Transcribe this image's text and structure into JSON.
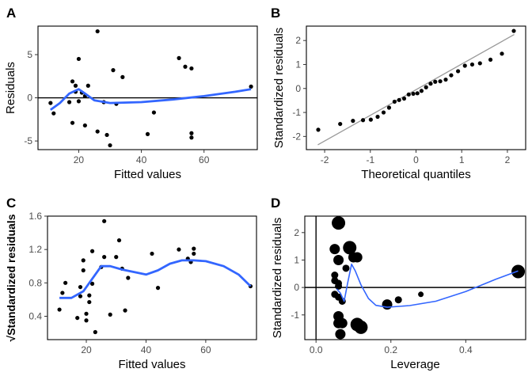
{
  "chart_data": [
    {
      "panel": "A",
      "type": "scatter",
      "xlabel": "Fitted values",
      "ylabel": "Residuals",
      "xlim": [
        7,
        77
      ],
      "ylim": [
        -6,
        8.3
      ],
      "xticks": [
        20,
        40,
        60
      ],
      "yticks": [
        -5,
        0,
        5
      ],
      "hline": 0,
      "points": [
        [
          11,
          -0.6
        ],
        [
          12,
          -1.8
        ],
        [
          17,
          -0.5
        ],
        [
          18,
          1.9
        ],
        [
          18,
          -2.9
        ],
        [
          19,
          0.7
        ],
        [
          19,
          1.4
        ],
        [
          20,
          4.5
        ],
        [
          20,
          -0.4
        ],
        [
          21,
          0.6
        ],
        [
          22,
          0.2
        ],
        [
          22,
          -3.2
        ],
        [
          23,
          1.4
        ],
        [
          26,
          7.7
        ],
        [
          26,
          -3.9
        ],
        [
          28,
          -0.5
        ],
        [
          29,
          -4.3
        ],
        [
          30,
          -5.5
        ],
        [
          31,
          3.2
        ],
        [
          32,
          -0.7
        ],
        [
          34,
          2.4
        ],
        [
          42,
          -4.2
        ],
        [
          44,
          -1.7
        ],
        [
          52,
          4.6
        ],
        [
          54,
          3.6
        ],
        [
          56,
          3.4
        ],
        [
          56,
          -4.1
        ],
        [
          56,
          -4.6
        ],
        [
          75,
          1.3
        ]
      ],
      "smooth": [
        [
          11,
          -1.4
        ],
        [
          14,
          -0.6
        ],
        [
          17,
          0.5
        ],
        [
          20,
          1.0
        ],
        [
          22,
          0.5
        ],
        [
          25,
          -0.3
        ],
        [
          30,
          -0.6
        ],
        [
          40,
          -0.5
        ],
        [
          50,
          -0.2
        ],
        [
          60,
          0.2
        ],
        [
          70,
          0.7
        ],
        [
          75,
          1.0
        ]
      ],
      "smooth_color": "#3366ff"
    },
    {
      "panel": "B",
      "type": "scatter",
      "xlabel": "Theoretical quantiles",
      "ylabel": "Standardized residuals",
      "xlim": [
        -2.4,
        2.4
      ],
      "ylim": [
        -2.55,
        2.6
      ],
      "xticks": [
        -2,
        -1,
        0,
        1,
        2
      ],
      "yticks": [
        -2,
        -1,
        0,
        1,
        2
      ],
      "line": [
        [
          -2.15,
          -2.35
        ],
        [
          2.15,
          2.25
        ]
      ],
      "line_color": "#999999",
      "points": [
        [
          -2.14,
          -1.72
        ],
        [
          -1.66,
          -1.48
        ],
        [
          -1.38,
          -1.35
        ],
        [
          -1.16,
          -1.32
        ],
        [
          -0.99,
          -1.3
        ],
        [
          -0.84,
          -1.18
        ],
        [
          -0.71,
          -1.0
        ],
        [
          -0.59,
          -0.8
        ],
        [
          -0.47,
          -0.55
        ],
        [
          -0.37,
          -0.48
        ],
        [
          -0.26,
          -0.42
        ],
        [
          -0.16,
          -0.25
        ],
        [
          -0.06,
          -0.22
        ],
        [
          0.03,
          -0.2
        ],
        [
          0.12,
          -0.1
        ],
        [
          0.22,
          0.05
        ],
        [
          0.32,
          0.2
        ],
        [
          0.42,
          0.28
        ],
        [
          0.53,
          0.3
        ],
        [
          0.65,
          0.37
        ],
        [
          0.77,
          0.55
        ],
        [
          0.92,
          0.72
        ],
        [
          1.07,
          0.95
        ],
        [
          1.23,
          1.0
        ],
        [
          1.4,
          1.05
        ],
        [
          1.63,
          1.2
        ],
        [
          1.88,
          1.45
        ],
        [
          2.14,
          2.4
        ]
      ]
    },
    {
      "panel": "C",
      "type": "scatter",
      "xlabel": "Fitted values",
      "ylabel": "√Standardized residuals",
      "xlim": [
        7,
        77
      ],
      "ylim": [
        0.12,
        1.6
      ],
      "xticks": [
        20,
        40,
        60
      ],
      "yticks": [
        0.4,
        0.8,
        1.2,
        1.6
      ],
      "points": [
        [
          11,
          0.48
        ],
        [
          12,
          0.68
        ],
        [
          13,
          0.8
        ],
        [
          17,
          0.38
        ],
        [
          18,
          0.64
        ],
        [
          18,
          0.75
        ],
        [
          19,
          0.95
        ],
        [
          19,
          1.07
        ],
        [
          20,
          0.35
        ],
        [
          20,
          0.43
        ],
        [
          21,
          0.57
        ],
        [
          21,
          0.65
        ],
        [
          22,
          0.79
        ],
        [
          22,
          1.18
        ],
        [
          23,
          0.21
        ],
        [
          25,
          0.99
        ],
        [
          26,
          1.54
        ],
        [
          26,
          1.11
        ],
        [
          28,
          0.42
        ],
        [
          30,
          1.11
        ],
        [
          31,
          1.31
        ],
        [
          32,
          0.97
        ],
        [
          33,
          0.47
        ],
        [
          34,
          0.86
        ],
        [
          42,
          1.15
        ],
        [
          44,
          0.74
        ],
        [
          51,
          1.2
        ],
        [
          54,
          1.09
        ],
        [
          55,
          1.05
        ],
        [
          56,
          1.21
        ],
        [
          56,
          1.15
        ],
        [
          75,
          0.76
        ]
      ],
      "smooth": [
        [
          11,
          0.62
        ],
        [
          15,
          0.62
        ],
        [
          19,
          0.7
        ],
        [
          22,
          0.85
        ],
        [
          25,
          1.0
        ],
        [
          28,
          1.0
        ],
        [
          32,
          0.96
        ],
        [
          36,
          0.93
        ],
        [
          40,
          0.9
        ],
        [
          44,
          0.95
        ],
        [
          48,
          1.03
        ],
        [
          52,
          1.07
        ],
        [
          56,
          1.07
        ],
        [
          60,
          1.06
        ],
        [
          66,
          1.0
        ],
        [
          71,
          0.9
        ],
        [
          75,
          0.76
        ]
      ],
      "smooth_color": "#3366ff"
    },
    {
      "panel": "D",
      "type": "scatter",
      "xlabel": "Leverage",
      "ylabel": "Standardized residuals",
      "xlim": [
        -0.03,
        0.56
      ],
      "ylim": [
        -1.9,
        2.6
      ],
      "xticks": [
        0.0,
        0.2,
        0.4
      ],
      "yticks": [
        -1,
        0,
        1,
        2
      ],
      "hline": 0,
      "vline": 0,
      "points": [
        [
          0.05,
          1.4
        ],
        [
          0.05,
          0.45
        ],
        [
          0.05,
          0.25
        ],
        [
          0.05,
          -0.25
        ],
        [
          0.06,
          0.15
        ],
        [
          0.06,
          0.05
        ],
        [
          0.06,
          -0.35
        ],
        [
          0.06,
          -1.05
        ],
        [
          0.06,
          -1.3
        ],
        [
          0.07,
          -0.5
        ],
        [
          0.07,
          -1.3
        ],
        [
          0.08,
          0.7
        ],
        [
          0.06,
          1.0
        ],
        [
          0.065,
          -1.7
        ],
        [
          0.06,
          2.35
        ],
        [
          0.09,
          1.45
        ],
        [
          0.1,
          1.1
        ],
        [
          0.11,
          1.1
        ],
        [
          0.11,
          -1.35
        ],
        [
          0.12,
          -1.45
        ],
        [
          0.19,
          -0.62
        ],
        [
          0.22,
          -0.45
        ],
        [
          0.28,
          -0.25
        ],
        [
          0.54,
          0.58
        ]
      ],
      "sizes": [
        3,
        2,
        2,
        2,
        2,
        2,
        2,
        3,
        3,
        2,
        3,
        2,
        3,
        3,
        4,
        4,
        3,
        3,
        4,
        4,
        3,
        2,
        1,
        4
      ],
      "smooth": [
        [
          0.055,
          -0.05
        ],
        [
          0.065,
          -0.2
        ],
        [
          0.075,
          -0.5
        ],
        [
          0.085,
          0.2
        ],
        [
          0.095,
          0.85
        ],
        [
          0.105,
          0.6
        ],
        [
          0.12,
          0.1
        ],
        [
          0.14,
          -0.4
        ],
        [
          0.16,
          -0.65
        ],
        [
          0.19,
          -0.72
        ],
        [
          0.25,
          -0.66
        ],
        [
          0.32,
          -0.5
        ],
        [
          0.4,
          -0.15
        ],
        [
          0.48,
          0.3
        ],
        [
          0.54,
          0.6
        ]
      ],
      "smooth_color": "#3366ff"
    }
  ]
}
